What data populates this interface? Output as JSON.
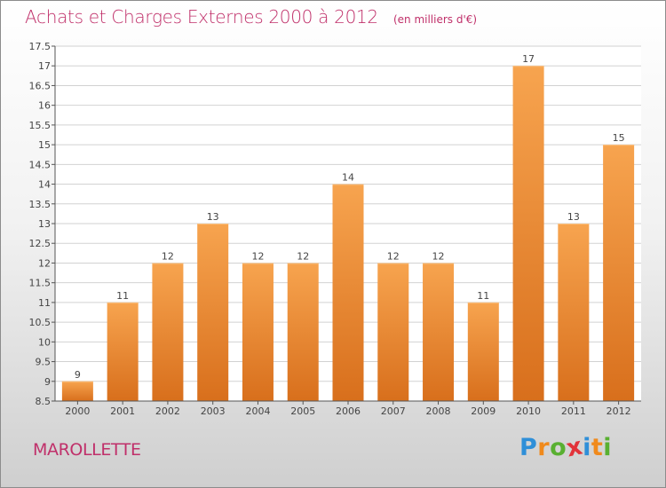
{
  "header": {
    "title": "Achats et Charges Externes 2000 à 2012",
    "unit": "(en milliers d'€)"
  },
  "location": "MAROLLETTE",
  "logo": {
    "text": "Proxiti",
    "letters": [
      {
        "ch": "P",
        "color": "#2f8fd8"
      },
      {
        "ch": "r",
        "color": "#f08a1c"
      },
      {
        "ch": "o",
        "color": "#59b031"
      },
      {
        "ch": "x",
        "color": "#e2333a"
      },
      {
        "ch": "i",
        "color": "#2f8fd8"
      },
      {
        "ch": "t",
        "color": "#f08a1c"
      },
      {
        "ch": "i",
        "color": "#59b031"
      }
    ]
  },
  "colors": {
    "title": "#c0306a",
    "bar_light": "#f7a44f",
    "bar_dark": "#d86f1c",
    "grid": "#d2d2d2",
    "axis": "#555555"
  },
  "chart_data": {
    "type": "bar",
    "categories": [
      "2000",
      "2001",
      "2002",
      "2003",
      "2004",
      "2005",
      "2006",
      "2007",
      "2008",
      "2009",
      "2010",
      "2011",
      "2012"
    ],
    "values": [
      9,
      11,
      12,
      13,
      12,
      12,
      14,
      12,
      12,
      11,
      17,
      13,
      15
    ],
    "data_labels": [
      "9",
      "11",
      "12",
      "13",
      "12",
      "12",
      "14",
      "12",
      "12",
      "11",
      "17",
      "13",
      "15"
    ],
    "ylim": [
      8.5,
      17.5
    ],
    "yticks": [
      8.5,
      9,
      9.5,
      10,
      10.5,
      11,
      11.5,
      12,
      12.5,
      13,
      13.5,
      14,
      14.5,
      15,
      15.5,
      16,
      16.5,
      17,
      17.5
    ],
    "ytick_labels": [
      "8.5",
      "9",
      "9.5",
      "10",
      "10.5",
      "11",
      "11.5",
      "12",
      "12.5",
      "13",
      "13.5",
      "14",
      "14.5",
      "15",
      "15.5",
      "16",
      "16.5",
      "17",
      "17.5"
    ],
    "grid": true,
    "xlabel": "",
    "ylabel": ""
  }
}
